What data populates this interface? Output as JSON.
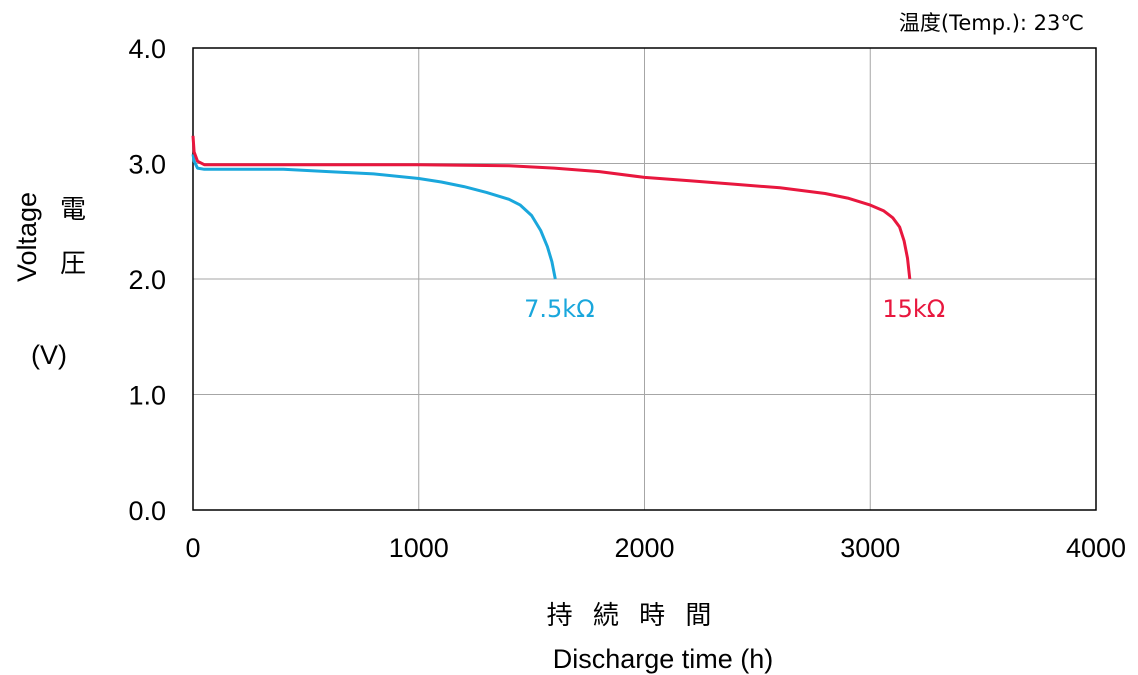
{
  "chart_data": {
    "type": "line",
    "temperature_note": "温度(Temp.): 23℃",
    "xlabel_jp": "持 続 時 間",
    "xlabel": "Discharge time (h)",
    "ylabel": "Voltage",
    "ylabel_jp_1": "電",
    "ylabel_jp_2": "圧",
    "ylabel_unit": "(V)",
    "xlim": [
      0,
      4000
    ],
    "ylim": [
      0,
      4
    ],
    "x_ticks": [
      "0",
      "1000",
      "2000",
      "3000",
      "4000"
    ],
    "y_ticks": [
      "0.0",
      "1.0",
      "2.0",
      "3.0",
      "4.0"
    ],
    "grid": true,
    "series": [
      {
        "name": "7.5kΩ",
        "color": "#1aa7dc",
        "points": [
          [
            0,
            3.08
          ],
          [
            5,
            3.02
          ],
          [
            20,
            2.96
          ],
          [
            50,
            2.95
          ],
          [
            200,
            2.95
          ],
          [
            400,
            2.95
          ],
          [
            600,
            2.93
          ],
          [
            800,
            2.91
          ],
          [
            1000,
            2.87
          ],
          [
            1100,
            2.84
          ],
          [
            1200,
            2.8
          ],
          [
            1300,
            2.75
          ],
          [
            1400,
            2.69
          ],
          [
            1450,
            2.64
          ],
          [
            1500,
            2.55
          ],
          [
            1540,
            2.42
          ],
          [
            1570,
            2.28
          ],
          [
            1590,
            2.15
          ],
          [
            1605,
            2.0
          ]
        ]
      },
      {
        "name": "15kΩ",
        "color": "#e8173e",
        "points": [
          [
            0,
            3.24
          ],
          [
            5,
            3.1
          ],
          [
            20,
            3.02
          ],
          [
            50,
            2.99
          ],
          [
            200,
            2.99
          ],
          [
            600,
            2.99
          ],
          [
            1000,
            2.99
          ],
          [
            1400,
            2.98
          ],
          [
            1600,
            2.96
          ],
          [
            1800,
            2.93
          ],
          [
            2000,
            2.88
          ],
          [
            2200,
            2.85
          ],
          [
            2400,
            2.82
          ],
          [
            2600,
            2.79
          ],
          [
            2800,
            2.74
          ],
          [
            2900,
            2.7
          ],
          [
            3000,
            2.64
          ],
          [
            3060,
            2.59
          ],
          [
            3100,
            2.53
          ],
          [
            3130,
            2.45
          ],
          [
            3150,
            2.33
          ],
          [
            3165,
            2.18
          ],
          [
            3175,
            2.0
          ]
        ]
      }
    ]
  }
}
